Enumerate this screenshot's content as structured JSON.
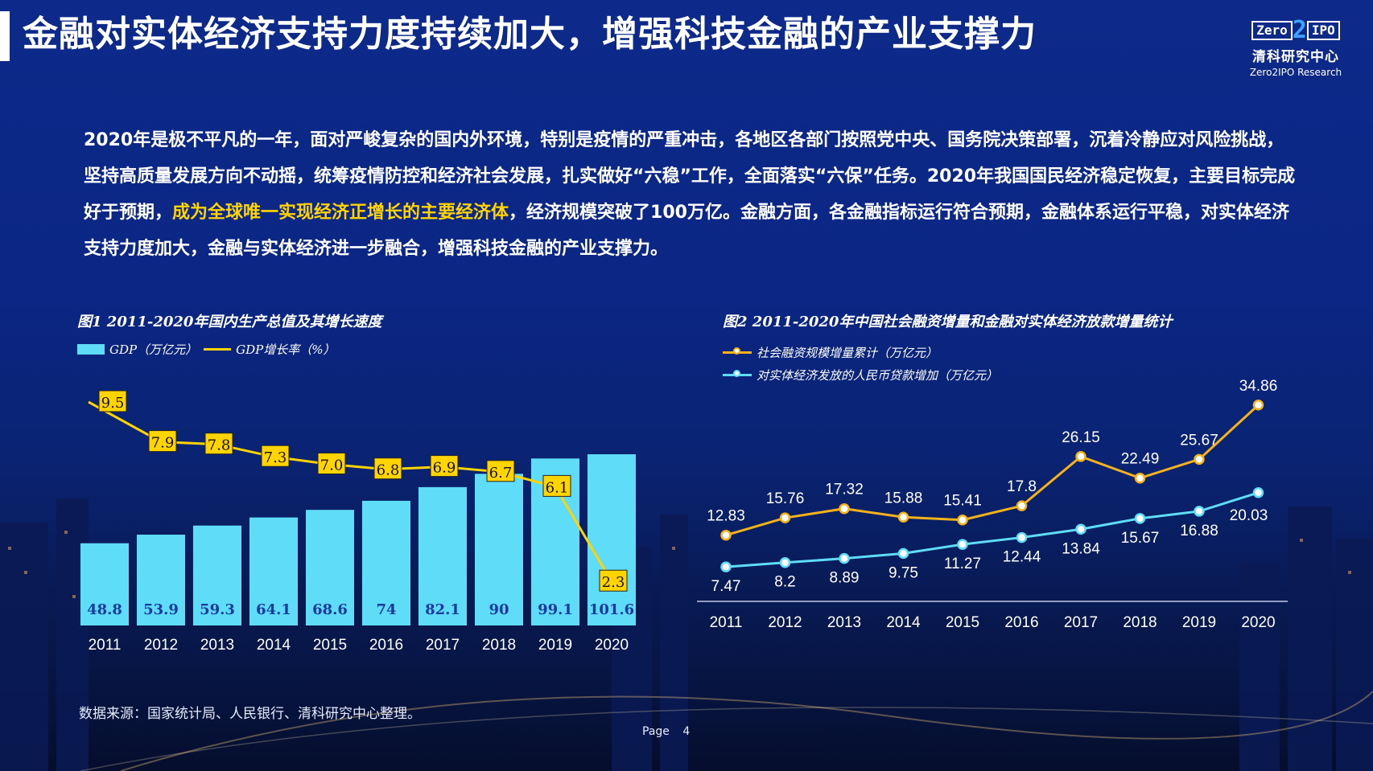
{
  "title": "金融对实体经济支持力度持续加大，增强科技金融的产业支撑力",
  "logo": {
    "box_left": "Zero",
    "box_mid": "2",
    "box_right": "IPO",
    "cn": "清科研究中心",
    "en": "Zero2IPO Research"
  },
  "paragraph": {
    "before": "2020年是极不平凡的一年，面对严峻复杂的国内外环境，特别是疫情的严重冲击，各地区各部门按照党中央、国务院决策部署，沉着冷静应对风险挑战，坚持高质量发展方向不动摇，统筹疫情防控和经济社会发展，扎实做好“六稳”工作，全面落实“六保”任务。2020年我国国民经济稳定恢复，主要目标完成好于预期，",
    "highlight": "成为全球唯一实现经济正增长的主要经济体",
    "after": "，经济规模突破了100万亿。金融方面，各金融指标运行符合预期，金融体系运行平稳，对实体经济支持力度加大，金融与实体经济进一步融合，增强科技金融的产业支撑力。"
  },
  "chart_data": [
    {
      "type": "bar",
      "title": "图1 2011-2020年国内生产总值及其增长速度",
      "categories": [
        "2011",
        "2012",
        "2013",
        "2014",
        "2015",
        "2016",
        "2017",
        "2018",
        "2019",
        "2020"
      ],
      "series": [
        {
          "name": "GDP（万亿元）",
          "type": "bar",
          "values": [
            48.8,
            53.9,
            59.3,
            64.1,
            68.6,
            74,
            82.1,
            90,
            99.1,
            101.6
          ],
          "labels": [
            "48.8",
            "53.9",
            "59.3",
            "64.1",
            "68.6",
            "74",
            "82.1",
            "90",
            "99.1",
            "101.6"
          ]
        },
        {
          "name": "GDP增长率（%）",
          "type": "line",
          "values": [
            9.5,
            7.9,
            7.8,
            7.3,
            7.0,
            6.8,
            6.9,
            6.7,
            6.1,
            2.3
          ],
          "labels": [
            "9.5",
            "7.9",
            "7.8",
            "7.3",
            "7.0",
            "6.8",
            "6.9",
            "6.7",
            "6.1",
            "2.3"
          ]
        }
      ],
      "colors": {
        "bar": "#5fdcf7",
        "line": "#ffd400",
        "bar_label": "#1a3a9c"
      }
    },
    {
      "type": "line",
      "title": "图2 2011-2020年中国社会融资增量和金融对实体经济放款增量统计",
      "categories": [
        "2011",
        "2012",
        "2013",
        "2014",
        "2015",
        "2016",
        "2017",
        "2018",
        "2019",
        "2020"
      ],
      "series": [
        {
          "name": "社会融资规模增量累计（万亿元）",
          "values": [
            12.83,
            15.76,
            17.32,
            15.88,
            15.41,
            17.8,
            26.15,
            22.49,
            25.67,
            34.86
          ],
          "labels": [
            "12.83",
            "15.76",
            "17.32",
            "15.88",
            "15.41",
            "17.8",
            "26.15",
            "22.49",
            "25.67",
            "34.86"
          ],
          "color": "#f5b21a"
        },
        {
          "name": "对实体经济发放的人民币贷款增加（万亿元）",
          "values": [
            7.47,
            8.2,
            8.89,
            9.75,
            11.27,
            12.44,
            13.84,
            15.67,
            16.88,
            20.03
          ],
          "labels": [
            "7.47",
            "8.2",
            "8.89",
            "9.75",
            "11.27",
            "12.44",
            "13.84",
            "15.67",
            "16.88",
            "20.03"
          ],
          "color": "#5fdcf7"
        }
      ]
    }
  ],
  "source": "数据来源：国家统计局、人民银行、清科研究中心整理。",
  "page": {
    "label": "Page",
    "number": "4"
  }
}
